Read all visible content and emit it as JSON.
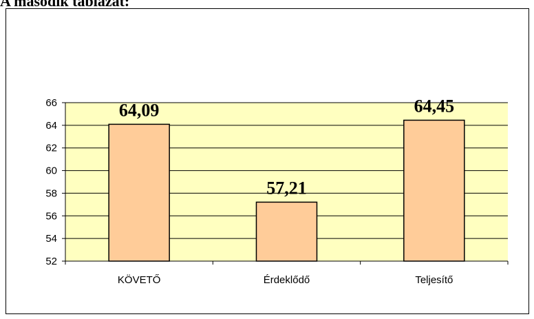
{
  "chart_data": {
    "type": "bar",
    "title": "A második táblázat:",
    "categories": [
      "KÖVETŐ",
      "Érdeklődő",
      "Teljesítő"
    ],
    "values": [
      64.09,
      57.21,
      64.45
    ],
    "value_labels": [
      "64,09",
      "57,21",
      "64,45"
    ],
    "color": "#ffcc99",
    "plot_background": "#ffffc0",
    "ylim": [
      52,
      66
    ],
    "yticks": [
      52,
      54,
      56,
      58,
      60,
      62,
      64,
      66
    ],
    "grid": true
  }
}
